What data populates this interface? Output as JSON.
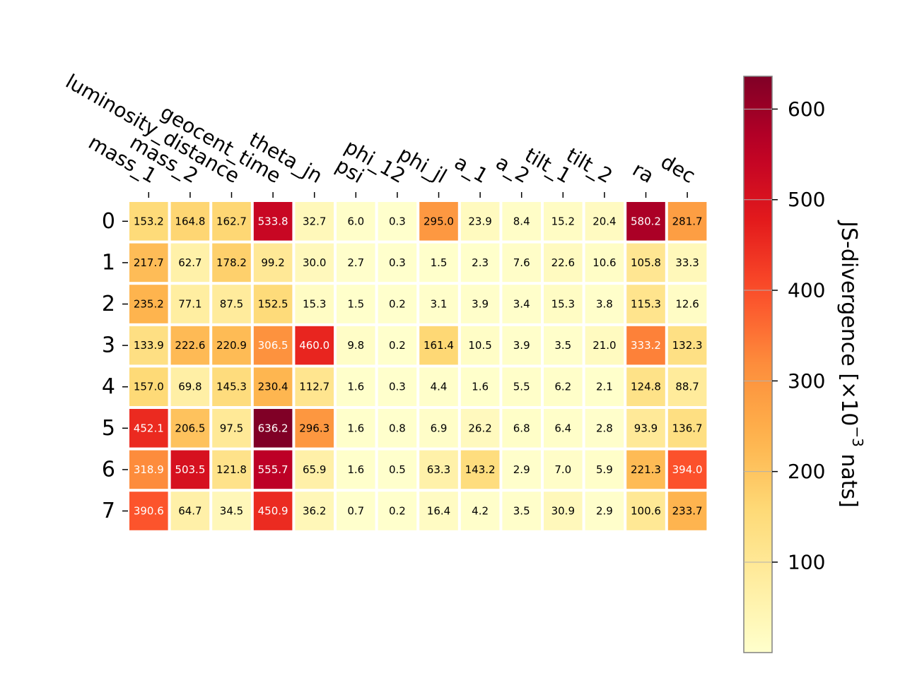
{
  "chart_data": {
    "type": "heatmap",
    "title": "",
    "xlabel": "",
    "ylabel": "",
    "columns": [
      "mass_1",
      "mass_2",
      "luminosity_distance",
      "geocent_time",
      "theta_jn",
      "psi",
      "phi_12",
      "phi_jl",
      "a_1",
      "a_2",
      "tilt_1",
      "tilt_2",
      "ra",
      "dec"
    ],
    "rows": [
      "0",
      "1",
      "2",
      "3",
      "4",
      "5",
      "6",
      "7"
    ],
    "values": [
      [
        153.2,
        164.8,
        162.7,
        533.8,
        32.7,
        6.0,
        0.3,
        295.0,
        23.9,
        8.4,
        15.2,
        20.4,
        580.2,
        281.7
      ],
      [
        217.7,
        62.7,
        178.2,
        99.2,
        30.0,
        2.7,
        0.3,
        1.5,
        2.3,
        7.6,
        22.6,
        10.6,
        105.8,
        33.3
      ],
      [
        235.2,
        77.1,
        87.5,
        152.5,
        15.3,
        1.5,
        0.2,
        3.1,
        3.9,
        3.4,
        15.3,
        3.8,
        115.3,
        12.6
      ],
      [
        133.9,
        222.6,
        220.9,
        306.5,
        460.0,
        9.8,
        0.2,
        161.4,
        10.5,
        3.9,
        3.5,
        21.0,
        333.2,
        132.3
      ],
      [
        157.0,
        69.8,
        145.3,
        230.4,
        112.7,
        1.6,
        0.3,
        4.4,
        1.6,
        5.5,
        6.2,
        2.1,
        124.8,
        88.7
      ],
      [
        452.1,
        206.5,
        97.5,
        636.2,
        296.3,
        1.6,
        0.8,
        6.9,
        26.2,
        6.8,
        6.4,
        2.8,
        93.9,
        136.7
      ],
      [
        318.9,
        503.5,
        121.8,
        555.7,
        65.9,
        1.6,
        0.5,
        63.3,
        143.2,
        2.9,
        7.0,
        5.9,
        221.3,
        394.0
      ],
      [
        390.6,
        64.7,
        34.5,
        450.9,
        36.2,
        0.7,
        0.2,
        16.4,
        4.2,
        3.5,
        30.9,
        2.9,
        100.6,
        233.7
      ]
    ],
    "colorbar": {
      "label": "JS-divergence [×10",
      "label_exponent": "−3",
      "label_suffix": " nats]",
      "range": [
        0.2,
        636.2
      ],
      "ticks": [
        100,
        200,
        300,
        400,
        500,
        600
      ],
      "colormap": "YlOrRd"
    },
    "legend": "none",
    "grid": false
  }
}
